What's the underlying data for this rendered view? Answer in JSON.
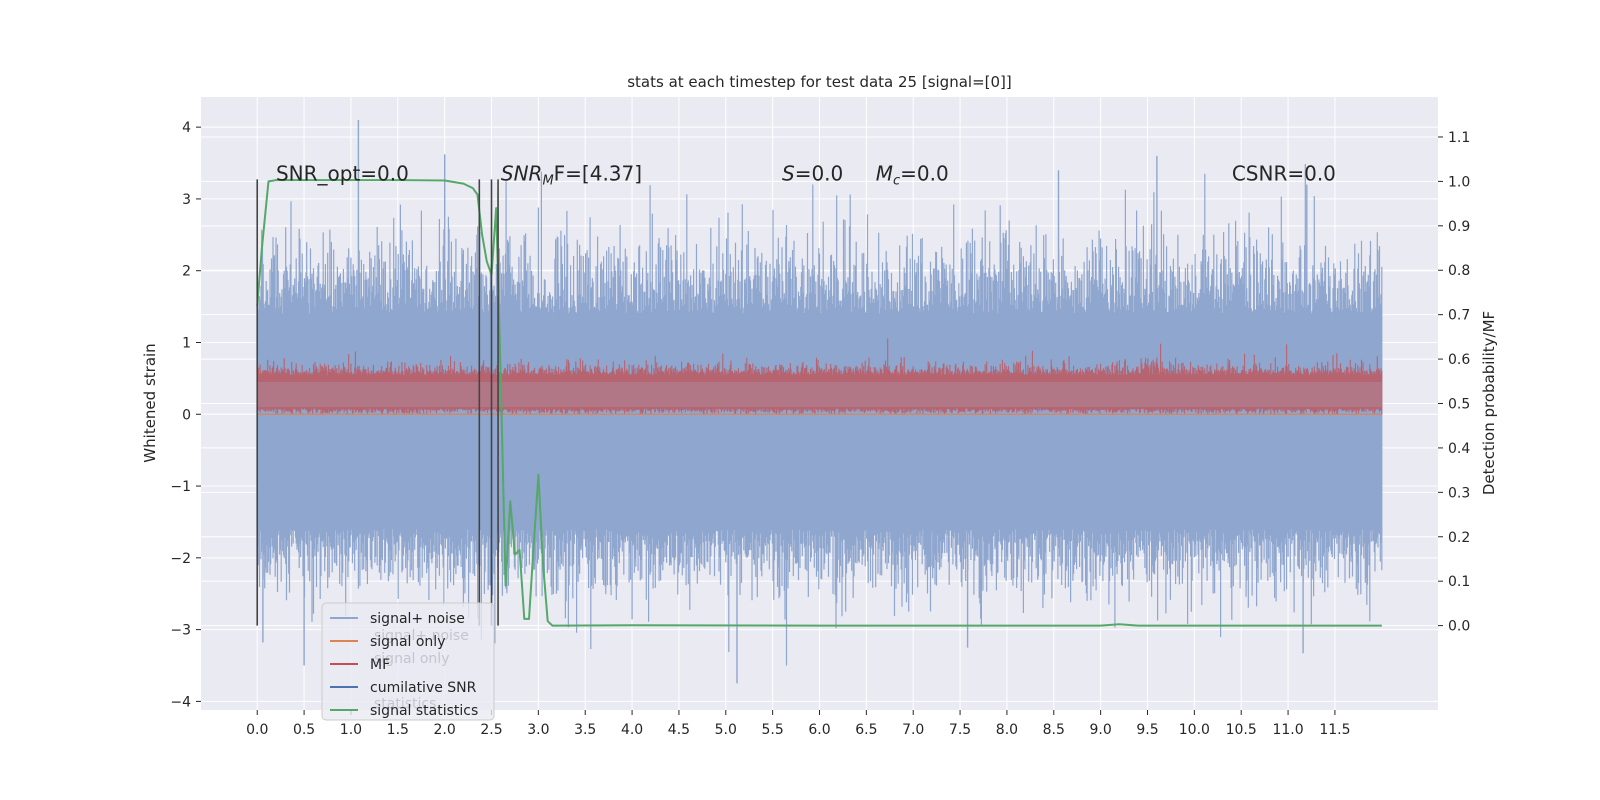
{
  "chart_data": {
    "type": "line",
    "title": "stats at each timestep for test data 25 [signal=[0]]",
    "xlabel": "",
    "ylabel": "Whitened strain",
    "y2label": "Detection probability/MF",
    "xlim": [
      -0.6,
      12.6
    ],
    "ylim": [
      -4.12,
      4.42
    ],
    "y2lim": [
      -0.19,
      1.19
    ],
    "x_ticks": [
      0.0,
      0.5,
      1.0,
      1.5,
      2.0,
      2.5,
      3.0,
      3.5,
      4.0,
      4.5,
      5.0,
      5.5,
      6.0,
      6.5,
      7.0,
      7.5,
      8.0,
      8.5,
      9.0,
      9.5,
      10.0,
      10.5,
      11.0,
      11.5
    ],
    "x_tick_labels": [
      "0.0",
      "0.5",
      "1.0",
      "1.5",
      "2.0",
      "2.5",
      "3.0",
      "3.5",
      "4.0",
      "4.5",
      "5.0",
      "5.5",
      "6.0",
      "6.5",
      "7.0",
      "7.5",
      "8.0",
      "8.5",
      "9.0",
      "9.5",
      "10.0",
      "10.5",
      "11.0",
      "11.5"
    ],
    "y_ticks": [
      -4,
      -3,
      -2,
      -1,
      0,
      1,
      2,
      3,
      4
    ],
    "y_tick_labels": [
      "−4",
      "−3",
      "−2",
      "−1",
      "0",
      "1",
      "2",
      "3",
      "4"
    ],
    "y2_ticks": [
      0.0,
      0.1,
      0.2,
      0.3,
      0.4,
      0.5,
      0.6,
      0.7,
      0.8,
      0.9,
      1.0,
      1.1
    ],
    "y2_tick_labels": [
      "0.0",
      "0.1",
      "0.2",
      "0.3",
      "0.4",
      "0.5",
      "0.6",
      "0.7",
      "0.8",
      "0.9",
      "1.0",
      "1.1"
    ],
    "grid": true,
    "legend": {
      "placement": "lower-left",
      "entries": [
        "signal+ noise",
        "signal only",
        "MF",
        "cumilative SNR",
        "signal statistics"
      ],
      "ghost_entries": [
        "signal+ noise",
        "signal only",
        "statistics"
      ]
    },
    "annotations": [
      {
        "text": "SNR_opt=0.0",
        "x": 0.2,
        "y2": 1.015
      },
      {
        "text": "SNR",
        "sub": "M",
        "rest": "F=[4.37]",
        "x": 2.6,
        "y2": 1.015
      },
      {
        "text": "S",
        "rest": "=0.0",
        "x": 5.6,
        "y2": 1.015
      },
      {
        "text": "M",
        "sub": "c",
        "rest": "=0.0",
        "x": 6.6,
        "y2": 1.015
      },
      {
        "text": "CSNR=0.0",
        "x": 10.4,
        "y2": 1.015
      }
    ],
    "series": [
      {
        "name": "signal+ noise",
        "axis": "left",
        "style": "band",
        "x_range": [
          0.0,
          12.0
        ],
        "typical_range": [
          -1.6,
          1.4
        ],
        "envelope_range": [
          -2.5,
          2.5
        ],
        "extremes": [
          [
            1.08,
            4.1
          ],
          [
            2.0,
            3.62
          ],
          [
            8.55,
            3.4
          ],
          [
            9.6,
            3.6
          ],
          [
            11.2,
            3.2
          ],
          [
            5.12,
            -3.75
          ],
          [
            0.5,
            -3.5
          ],
          [
            11.16,
            -3.33
          ],
          [
            7.58,
            -3.25
          ],
          [
            0.06,
            -3.18
          ]
        ]
      },
      {
        "name": "MF",
        "axis": "left",
        "style": "band",
        "x_range": [
          0.0,
          12.0
        ],
        "typical_range": [
          0.05,
          0.55
        ],
        "envelope_range": [
          0.0,
          0.85
        ]
      },
      {
        "name": "signal only",
        "axis": "left",
        "style": "line",
        "x": [
          0.0,
          12.0
        ],
        "values": [
          0.0,
          0.0
        ]
      },
      {
        "name": "signal statistics",
        "axis": "right",
        "style": "line",
        "x": [
          0.0,
          0.05,
          0.12,
          0.2,
          0.3,
          0.5,
          1.0,
          1.5,
          2.0,
          2.2,
          2.3,
          2.35,
          2.4,
          2.45,
          2.5,
          2.55,
          2.6,
          2.65,
          2.7,
          2.75,
          2.8,
          2.85,
          2.9,
          2.95,
          3.0,
          3.05,
          3.1,
          3.15,
          3.2,
          4.0,
          6.0,
          9.0,
          9.2,
          9.4,
          12.0
        ],
        "values": [
          0.72,
          0.85,
          1.0,
          1.003,
          1.003,
          1.003,
          1.003,
          1.003,
          1.002,
          0.995,
          0.985,
          0.97,
          0.88,
          0.82,
          0.79,
          0.94,
          0.54,
          0.09,
          0.28,
          0.16,
          0.17,
          0.015,
          0.015,
          0.18,
          0.34,
          0.14,
          0.01,
          0.0,
          0.0,
          0.001,
          0.0,
          0.0,
          0.003,
          0.0,
          0.0
        ]
      }
    ],
    "vertical_lines": [
      0.0,
      2.37,
      2.5,
      2.57
    ]
  },
  "colors": {
    "background": "#eaeaf2",
    "grid": "#ffffff",
    "signal_noise": "#8fa6ce",
    "signal_only": "#dd8452",
    "mf": "#c44e52",
    "cumulative_snr": "#4c72b0",
    "signal_statistics": "#55a868",
    "vertical_line": "#444444"
  }
}
